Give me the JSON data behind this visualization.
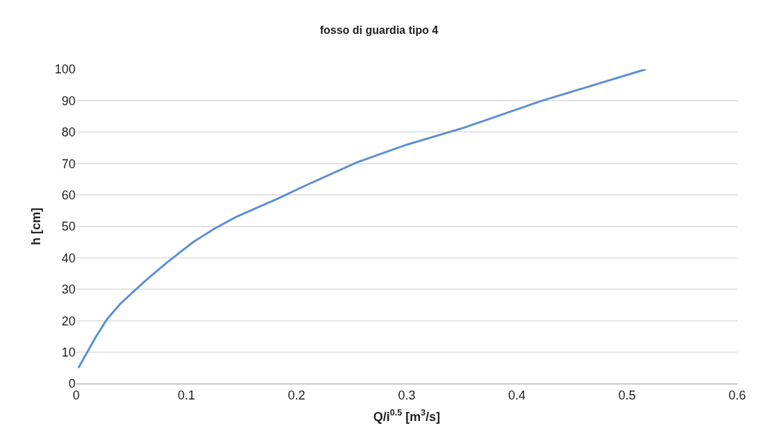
{
  "chart_data": {
    "type": "line",
    "title": "fosso di guardia tipo 4",
    "xlabel": "Q/i$^{0.5}$ [m$^{3}$/s]",
    "ylabel": "h [cm]",
    "series": [
      {
        "color": "#5b8fd6",
        "x": [
          0.002,
          0.018,
          0.028,
          0.04,
          0.063,
          0.082,
          0.106,
          0.126,
          0.145,
          0.184,
          0.208,
          0.255,
          0.3,
          0.352,
          0.403,
          0.423,
          0.517
        ],
        "values": [
          5,
          15,
          20.5,
          25.4,
          32.8,
          38.4,
          45,
          49.4,
          53,
          59,
          63,
          70.4,
          76,
          81.4,
          87.6,
          90,
          100
        ]
      }
    ],
    "xlim": [
      0,
      0.6
    ],
    "xticks": [
      0,
      0.1,
      0.2,
      0.3,
      0.4,
      0.5,
      0.6
    ],
    "ylim": [
      0,
      100
    ],
    "yticks": [
      0,
      10,
      20,
      30,
      40,
      50,
      60,
      70,
      80,
      90,
      100
    ],
    "grid": "y",
    "legend": false,
    "marker": "none",
    "line_style": "solid"
  }
}
